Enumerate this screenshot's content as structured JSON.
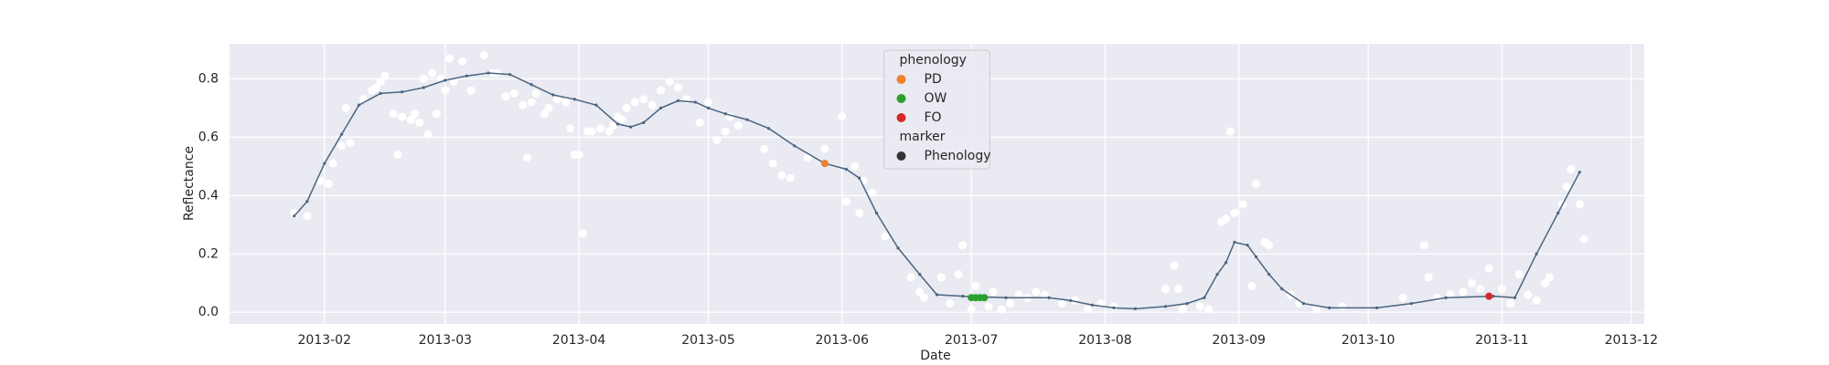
{
  "chart_data": {
    "type": "scatter",
    "xlabel": "Date",
    "ylabel": "Reflectance",
    "xlim": [
      10,
      338
    ],
    "xticks": [
      {
        "value": 32,
        "label": "2013-02"
      },
      {
        "value": 60,
        "label": "2013-03"
      },
      {
        "value": 91,
        "label": "2013-04"
      },
      {
        "value": 121,
        "label": "2013-05"
      },
      {
        "value": 152,
        "label": "2013-06"
      },
      {
        "value": 182,
        "label": "2013-07"
      },
      {
        "value": 213,
        "label": "2013-08"
      },
      {
        "value": 244,
        "label": "2013-09"
      },
      {
        "value": 274,
        "label": "2013-10"
      },
      {
        "value": 305,
        "label": "2013-11"
      },
      {
        "value": 335,
        "label": "2013-12"
      }
    ],
    "ylim": [
      -0.04,
      0.92
    ],
    "yticks": [
      {
        "value": 0,
        "label": "0.0"
      },
      0.2,
      0.4,
      0.6,
      0.8
    ],
    "grid": true,
    "points": {
      "color": "#ffffff",
      "x": [
        25,
        28,
        31,
        33,
        34,
        36,
        37,
        38,
        41,
        43,
        44,
        45,
        46,
        48,
        49,
        50,
        52,
        53,
        54,
        55,
        56,
        57,
        58,
        59,
        60,
        61,
        62,
        64,
        66,
        69,
        71,
        72,
        74,
        76,
        78,
        79,
        80,
        81,
        83,
        84,
        86,
        88,
        89,
        90,
        91,
        92,
        93,
        94,
        96,
        98,
        99,
        100,
        101,
        102,
        104,
        106,
        108,
        110,
        112,
        114,
        116,
        119,
        121,
        123,
        125,
        126,
        128,
        134,
        136,
        138,
        140,
        144,
        148,
        152,
        153,
        155,
        156,
        157,
        159,
        162,
        168,
        170,
        171,
        175,
        177,
        179,
        180,
        182,
        183,
        186,
        187,
        189,
        191,
        193,
        195,
        197,
        199,
        203,
        206,
        209,
        212,
        215,
        227,
        229,
        230,
        231,
        235,
        237,
        240,
        241,
        242,
        243,
        245,
        247,
        248,
        250,
        251,
        256,
        258,
        262,
        268,
        282,
        287,
        288,
        290,
        293,
        296,
        298,
        300,
        302,
        305,
        307,
        309,
        311,
        313,
        315,
        316,
        319,
        320,
        321,
        323,
        324
      ],
      "values": [
        0.34,
        0.33,
        0.45,
        0.44,
        0.51,
        0.57,
        0.7,
        0.58,
        0.73,
        0.76,
        0.77,
        0.79,
        0.81,
        0.68,
        0.54,
        0.67,
        0.66,
        0.68,
        0.65,
        0.8,
        0.61,
        0.82,
        0.68,
        0.8,
        0.76,
        0.87,
        0.79,
        0.86,
        0.76,
        0.88,
        0.82,
        0.82,
        0.74,
        0.75,
        0.71,
        0.53,
        0.72,
        0.75,
        0.68,
        0.7,
        0.73,
        0.72,
        0.63,
        0.54,
        0.54,
        0.27,
        0.62,
        0.62,
        0.63,
        0.62,
        0.64,
        0.67,
        0.66,
        0.7,
        0.72,
        0.73,
        0.71,
        0.76,
        0.79,
        0.77,
        0.73,
        0.65,
        0.72,
        0.59,
        0.62,
        0.67,
        0.64,
        0.56,
        0.51,
        0.47,
        0.46,
        0.53,
        0.56,
        0.67,
        0.38,
        0.5,
        0.34,
        0.45,
        0.41,
        0.26,
        0.12,
        0.07,
        0.05,
        0.12,
        0.03,
        0.13,
        0.23,
        0.01,
        0.09,
        0.02,
        0.07,
        0.01,
        0.03,
        0.06,
        0.05,
        0.07,
        0.06,
        0.03,
        0.04,
        0.01,
        0.03,
        0.02,
        0.08,
        0.16,
        0.08,
        0.01,
        0.02,
        0.01,
        0.31,
        0.32,
        0.62,
        0.34,
        0.37,
        0.09,
        0.44,
        0.24,
        0.23,
        0.06,
        0.03,
        0.01,
        0.02,
        0.05,
        0.23,
        0.12,
        0.05,
        0.06,
        0.07,
        0.1,
        0.08,
        0.15,
        0.08,
        0.03,
        0.13,
        0.06,
        0.04,
        0.1,
        0.12,
        0.37,
        0.43,
        0.49,
        0.37,
        0.25
      ]
    },
    "line": {
      "color": "#4a6580",
      "x": [
        25,
        28,
        32,
        36,
        40,
        45,
        50,
        55,
        60,
        65,
        70,
        75,
        80,
        85,
        90,
        95,
        100,
        103,
        106,
        110,
        114,
        118,
        121,
        125,
        130,
        135,
        141,
        148,
        153,
        156,
        160,
        165,
        170,
        174,
        180,
        190,
        200,
        205,
        210,
        215,
        220,
        227,
        232,
        236,
        239,
        241,
        243,
        246,
        248,
        251,
        254,
        259,
        265,
        276,
        284,
        292,
        303,
        308,
        313,
        318,
        323
      ],
      "values": [
        0.33,
        0.38,
        0.51,
        0.61,
        0.71,
        0.75,
        0.755,
        0.77,
        0.795,
        0.81,
        0.82,
        0.815,
        0.78,
        0.745,
        0.73,
        0.71,
        0.645,
        0.635,
        0.65,
        0.7,
        0.725,
        0.72,
        0.7,
        0.68,
        0.66,
        0.63,
        0.57,
        0.51,
        0.49,
        0.46,
        0.34,
        0.22,
        0.13,
        0.06,
        0.055,
        0.05,
        0.05,
        0.04,
        0.025,
        0.015,
        0.012,
        0.02,
        0.03,
        0.05,
        0.13,
        0.17,
        0.24,
        0.23,
        0.19,
        0.13,
        0.08,
        0.03,
        0.015,
        0.015,
        0.03,
        0.05,
        0.055,
        0.05,
        0.2,
        0.34,
        0.48
      ]
    },
    "series": [
      {
        "name": "PD",
        "color": "#f0812b",
        "x": [
          148
        ],
        "values": [
          0.51
        ]
      },
      {
        "name": "OW",
        "color": "#2ca02c",
        "x": [
          182,
          183,
          184,
          185
        ],
        "values": [
          0.05,
          0.05,
          0.05,
          0.05
        ]
      },
      {
        "name": "FO",
        "color": "#d62728",
        "x": [
          302
        ],
        "values": [
          0.055
        ]
      }
    ],
    "legend": {
      "title": "phenology",
      "marker_title": "marker",
      "marker_label": "Phenology",
      "marker_color": "#333333",
      "position": "upper center"
    }
  }
}
